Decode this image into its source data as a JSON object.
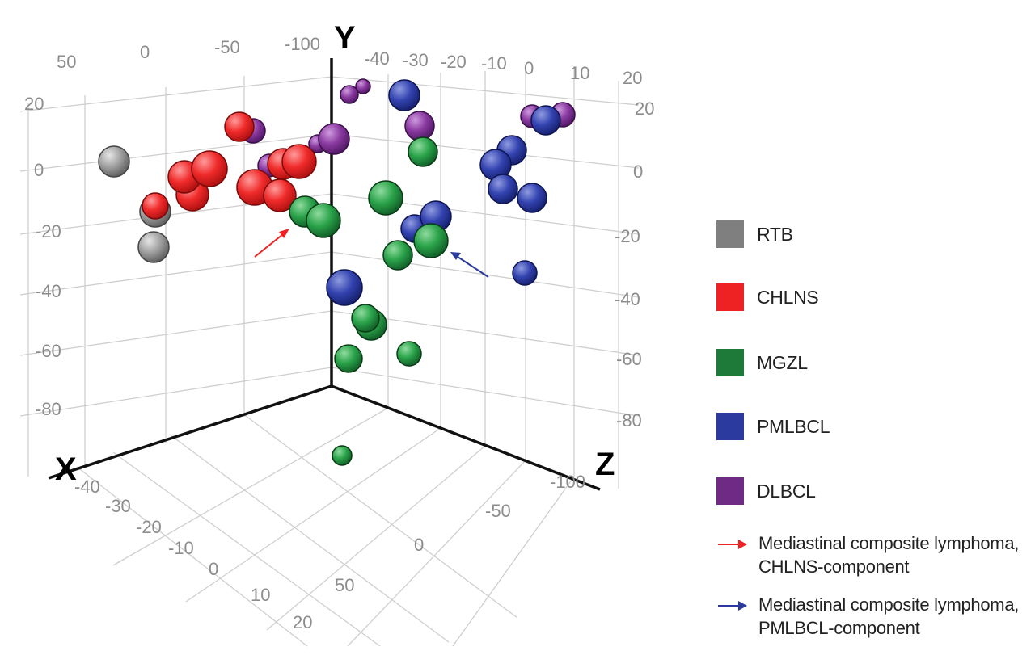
{
  "chart_data": {
    "type": "scatter",
    "axis_names": {
      "x": "X",
      "y": "Y",
      "z": "Z"
    },
    "ticks": {
      "x_back": [
        "50",
        "0",
        "-50",
        "-100"
      ],
      "x_front": [
        "-40",
        "-30",
        "-20",
        "-10",
        "0",
        "10",
        "20"
      ],
      "y_left": [
        "20",
        "0",
        "-20",
        "-40",
        "-60",
        "-80"
      ],
      "y_right": [
        "20",
        "0",
        "-20",
        "-40",
        "-60",
        "-80"
      ],
      "z_top": [
        "-40",
        "-30",
        "-20",
        "-10",
        "0",
        "10",
        "20"
      ],
      "z_front": [
        "50",
        "0",
        "-50",
        "-100"
      ]
    },
    "series": [
      {
        "name": "RTB",
        "color": "#8c8c8c"
      },
      {
        "name": "CHLNS",
        "color": "#ee2222"
      },
      {
        "name": "MGZL",
        "color": "#1e8a3c"
      },
      {
        "name": "PMLBCL",
        "color": "#2b3a9e"
      },
      {
        "name": "DLBCL",
        "color": "#7b2d8f"
      }
    ],
    "annotations": [
      {
        "color": "#ee2222",
        "line1": "Mediastinal composite lymphoma,",
        "line2": "CHLNS-component"
      },
      {
        "color": "#2b3a9e",
        "line1": "Mediastinal composite lymphoma,",
        "line2": "PMLBCL-component"
      }
    ]
  }
}
